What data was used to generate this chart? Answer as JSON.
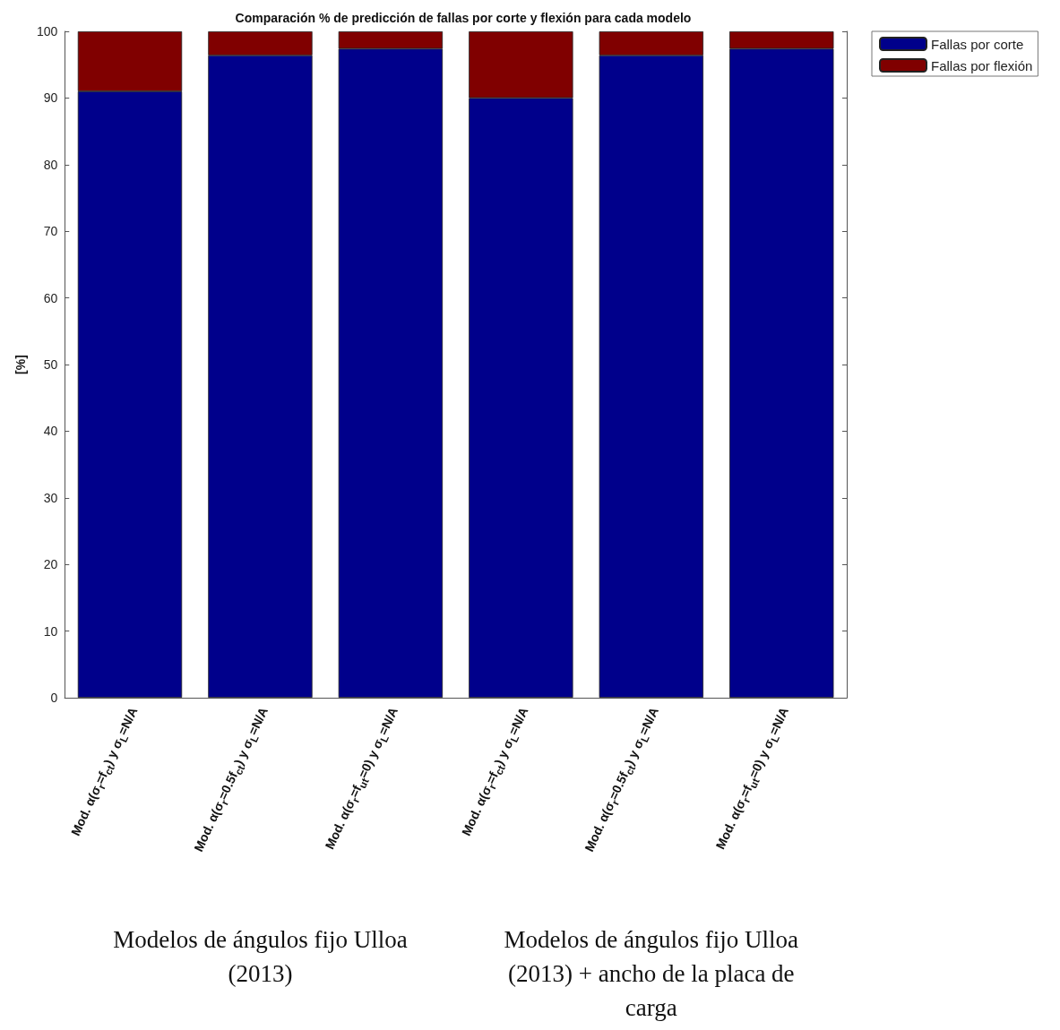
{
  "chart_data": {
    "type": "bar",
    "stacked": true,
    "title": "Comparación % de predicción de fallas por corte y flexión para cada modelo",
    "ylabel": "[%]",
    "categories": [
      "Mod. α(σ$_{r}$=f$_{ct}$) y σ$_{L}$=N/A",
      "Mod. α(σ$_{r}$=0.5f$_{ct}$) y σ$_{L}$=N/A",
      "Mod. α(σ$_{r}$=f$_{ut}$=0) y σ$_{L}$=N/A",
      "Mod. α(σ$_{r}$=f$_{ct}$) y σ$_{L}$=N/A",
      "Mod. α(σ$_{r}$=0.5f$_{ct}$) y σ$_{L}$=N/A",
      "Mod. α(σ$_{r}$=f$_{ut}$=0) y σ$_{L}$=N/A"
    ],
    "series": [
      {
        "name": "Fallas por corte",
        "color": "#00008b",
        "values": [
          91,
          96.4,
          97.4,
          90,
          96.4,
          97.4
        ]
      },
      {
        "name": "Fallas por flexión",
        "color": "#800000",
        "values": [
          9,
          3.6,
          2.6,
          10,
          3.6,
          2.6
        ]
      }
    ],
    "ylim": [
      0,
      100
    ],
    "yticks": [
      0,
      10,
      20,
      30,
      40,
      50,
      60,
      70,
      80,
      90,
      100
    ],
    "grid": false,
    "legend": "top right",
    "annotations": [
      "Modelos de ángulos fijo Ulloa (2013)",
      "Modelos de ángulos fijo Ulloa (2013) + ancho de la placa de carga"
    ]
  }
}
